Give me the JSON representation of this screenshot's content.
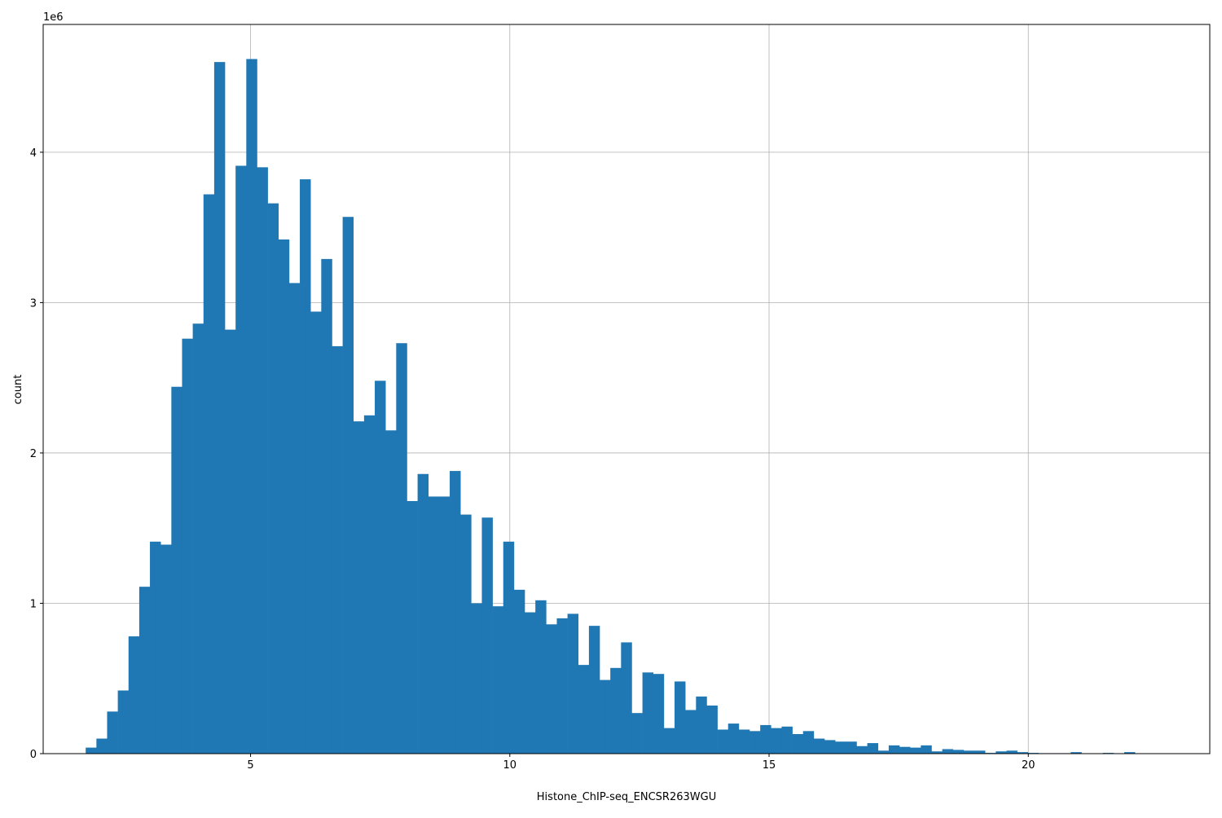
{
  "chart_data": {
    "type": "bar",
    "subtype": "histogram",
    "title": "",
    "xlabel": "Histone_ChIP-seq_ENCSR263WGU",
    "ylabel": "count",
    "y_offset_label": "1e6",
    "y_scale": 1000000,
    "xlim": [
      1.0,
      23.5
    ],
    "ylim": [
      0,
      4.85
    ],
    "xticks": [
      5,
      10,
      15,
      20
    ],
    "yticks": [
      0,
      1,
      2,
      3,
      4
    ],
    "grid": true,
    "bar_color": "#1f77b4",
    "bin_start": 1.82,
    "bin_width": 0.2065,
    "values_millions": [
      0.04,
      0.1,
      0.28,
      0.42,
      0.78,
      1.11,
      1.41,
      1.39,
      2.44,
      2.76,
      2.86,
      3.72,
      4.6,
      2.82,
      3.91,
      4.62,
      3.9,
      3.66,
      3.42,
      3.13,
      3.82,
      2.94,
      3.29,
      2.71,
      3.57,
      2.21,
      2.25,
      2.48,
      2.15,
      2.73,
      1.68,
      1.86,
      1.71,
      1.71,
      1.88,
      1.59,
      1.0,
      1.57,
      0.98,
      1.41,
      1.09,
      0.94,
      1.02,
      0.86,
      0.9,
      0.93,
      0.59,
      0.85,
      0.49,
      0.57,
      0.74,
      0.27,
      0.54,
      0.53,
      0.17,
      0.48,
      0.29,
      0.38,
      0.32,
      0.16,
      0.2,
      0.16,
      0.15,
      0.19,
      0.17,
      0.18,
      0.13,
      0.15,
      0.1,
      0.09,
      0.08,
      0.08,
      0.05,
      0.07,
      0.02,
      0.055,
      0.045,
      0.04,
      0.055,
      0.015,
      0.03,
      0.025,
      0.02,
      0.02,
      0.005,
      0.015,
      0.02,
      0.01,
      0.005,
      0.003,
      0.003,
      0.003,
      0.01,
      0.0,
      0.0,
      0.005,
      0.0,
      0.01
    ]
  }
}
